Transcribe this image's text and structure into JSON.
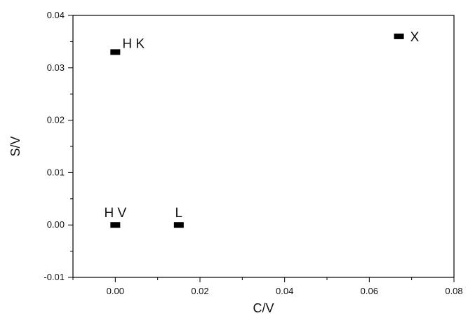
{
  "chart_data": {
    "type": "scatter",
    "title": "",
    "xlabel": "C/V",
    "ylabel": "S/V",
    "xlim": [
      -0.01,
      0.08
    ],
    "ylim": [
      -0.01,
      0.04
    ],
    "xticks": [
      0.0,
      0.02,
      0.04,
      0.06,
      0.08
    ],
    "xtick_labels": [
      "0.00",
      "0.02",
      "0.04",
      "0.06",
      "0.08"
    ],
    "yticks": [
      -0.01,
      0.0,
      0.01,
      0.02,
      0.03,
      0.04
    ],
    "ytick_labels": [
      "-0.01",
      "0.00",
      "0.01",
      "0.02",
      "0.03",
      "0.04"
    ],
    "grid": false,
    "legend": "none",
    "marker_color": "#000000",
    "points": [
      {
        "label": "H K",
        "x": 0.0,
        "y": 0.033
      },
      {
        "label": "X",
        "x": 0.067,
        "y": 0.036
      },
      {
        "label": "H V",
        "x": 0.0,
        "y": 0.0
      },
      {
        "label": "L",
        "x": 0.015,
        "y": 0.0
      }
    ]
  }
}
